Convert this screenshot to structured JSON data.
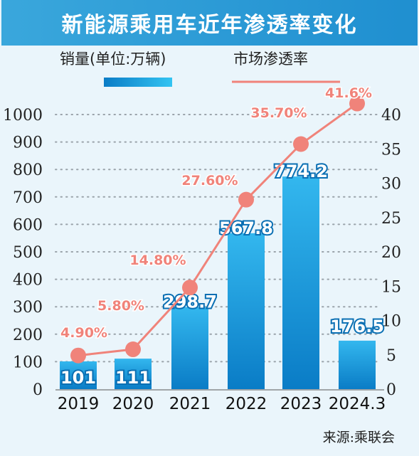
{
  "title": "新能源乘用车近年渗透率变化",
  "legend": {
    "bar_label": "销量(单位:万辆)",
    "line_label": "市场渗透率"
  },
  "source": "来源:乘联会",
  "colors": {
    "title_bg": "#2d9bd8",
    "bar_top": "#2fb4ec",
    "bar_bottom": "#0b7fc8",
    "line": "#f0837a",
    "background": "#eaf5fb"
  },
  "chart_data": {
    "type": "bar",
    "categories": [
      "2019",
      "2020",
      "2021",
      "2022",
      "2023",
      "2024.3"
    ],
    "series": [
      {
        "name": "销量(单位:万辆)",
        "type": "bar",
        "axis": "left",
        "values": [
          101,
          111,
          298.7,
          567.8,
          774.2,
          176.5
        ],
        "labels": [
          "101",
          "111",
          "298.7",
          "567.8",
          "774.2",
          "176.5"
        ]
      },
      {
        "name": "市场渗透率",
        "type": "line",
        "axis": "right",
        "values": [
          4.9,
          5.8,
          14.8,
          27.6,
          35.7,
          41.6
        ],
        "labels": [
          "4.90%",
          "5.80%",
          "14.80%",
          "27.60%",
          "35.70%",
          "41.6%"
        ]
      }
    ],
    "left_axis": {
      "ylim": [
        0,
        1000
      ],
      "ticks": [
        "0",
        "100",
        "200",
        "300",
        "400",
        "500",
        "600",
        "700",
        "800",
        "900",
        "1000"
      ]
    },
    "right_axis": {
      "ylim": [
        0,
        40
      ],
      "ticks": [
        "0",
        "5",
        "10",
        "15",
        "20",
        "25",
        "30",
        "35",
        "40"
      ]
    },
    "grid": "dotted horizontal"
  }
}
